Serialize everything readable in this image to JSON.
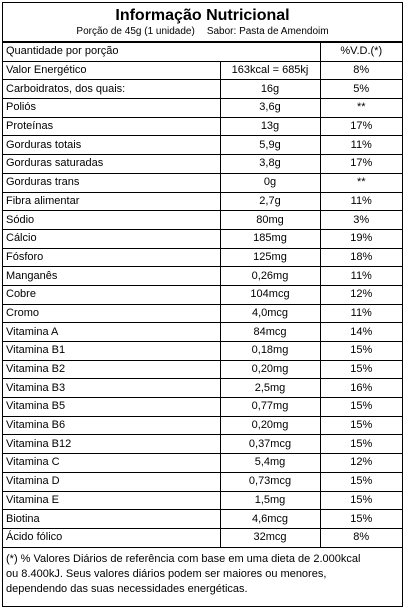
{
  "header": {
    "title": "Informação Nutricional",
    "portion": "Porção de 45g (1 unidade)",
    "flavor": "Sabor: Pasta de Amendoim"
  },
  "table": {
    "columns": [
      "Quantidade por porção",
      "%V.D.(*)"
    ],
    "rows": [
      [
        "Valor Energético",
        "163kcal = 685kj",
        "8%"
      ],
      [
        "Carboidratos, dos quais:",
        "16g",
        "5%"
      ],
      [
        "Poliós",
        "3,6g",
        "**"
      ],
      [
        "Proteínas",
        "13g",
        "17%"
      ],
      [
        "Gorduras totais",
        "5,9g",
        "11%"
      ],
      [
        "Gorduras saturadas",
        "3,8g",
        "17%"
      ],
      [
        "Gorduras trans",
        "0g",
        "**"
      ],
      [
        "Fibra alimentar",
        "2,7g",
        "11%"
      ],
      [
        "Sódio",
        "80mg",
        "3%"
      ],
      [
        "Cálcio",
        "185mg",
        "19%"
      ],
      [
        "Fósforo",
        "125mg",
        "18%"
      ],
      [
        "Manganês",
        "0,26mg",
        "11%"
      ],
      [
        "Cobre",
        "104mcg",
        "12%"
      ],
      [
        "Cromo",
        "4,0mcg",
        "11%"
      ],
      [
        "Vitamina A",
        "84mcg",
        "14%"
      ],
      [
        "Vitamina B1",
        "0,18mg",
        "15%"
      ],
      [
        "Vitamina B2",
        "0,20mg",
        "15%"
      ],
      [
        "Vitamina B3",
        "2,5mg",
        "16%"
      ],
      [
        "Vitamina B5",
        "0,77mg",
        "15%"
      ],
      [
        "Vitamina B6",
        "0,20mg",
        "15%"
      ],
      [
        "Vitamina B12",
        "0,37mcg",
        "15%"
      ],
      [
        "Vitamina C",
        "5,4mg",
        "12%"
      ],
      [
        "Vitamina D",
        "0,73mcg",
        "15%"
      ],
      [
        "Vitamina E",
        "1,5mg",
        "15%"
      ],
      [
        "Biotina",
        "4,6mcg",
        "15%"
      ],
      [
        "Ácido fólico",
        "32mcg",
        "8%"
      ]
    ]
  },
  "footnote": [
    "(*) % Valores Diários de referência com base em uma dieta de 2.000kcal",
    "ou 8.400kJ. Seus valores diários podem ser maiores ou menores,",
    "dependendo das suas necessidades energéticas."
  ]
}
